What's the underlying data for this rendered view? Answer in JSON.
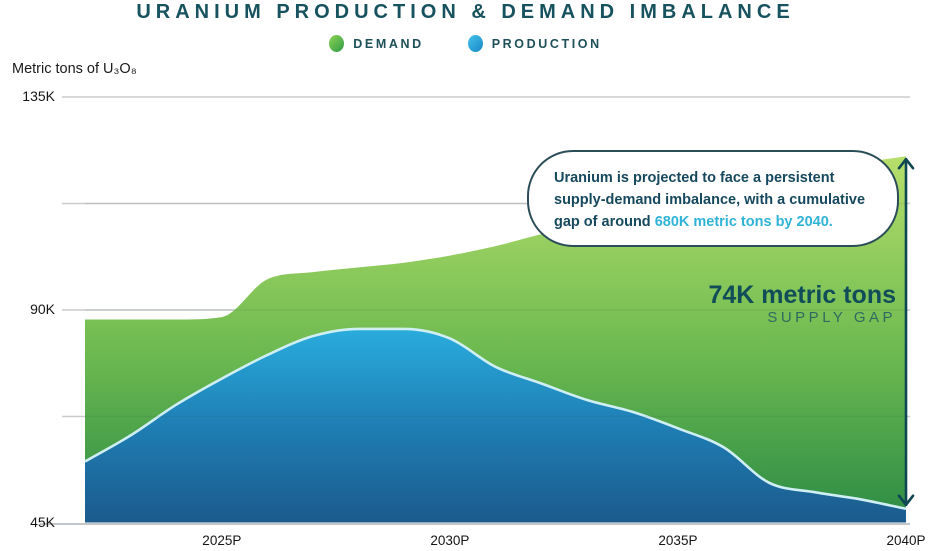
{
  "header": {
    "title": "URANIUM PRODUCTION & DEMAND IMBALANCE"
  },
  "legend": {
    "items": [
      {
        "label": "DEMAND",
        "dot_light": "#8ed455",
        "dot_dark": "#2f9a47"
      },
      {
        "label": "PRODUCTION",
        "dot_light": "#45c2ec",
        "dot_dark": "#1787c5"
      }
    ]
  },
  "axis": {
    "unit_label": "Metric tons of U₃O₈"
  },
  "callout": {
    "line1": "Uranium is projected to face a persistent",
    "line2": "supply-demand imbalance, with a cumulative",
    "line3_prefix": "gap of around ",
    "line3_highlight": "680K metric tons by 2040.",
    "highlight_color": "#2fb3d7"
  },
  "gap_label": {
    "value": "74K metric tons",
    "caption": "SUPPLY GAP"
  },
  "colors": {
    "title_teal": "#17525f",
    "bubble_border": "#2b4d58",
    "gridline": "#c9ccce",
    "baseline": "#c2c6c8",
    "arrow": "#0d4751",
    "production_edge": "#cfeff4"
  },
  "chart_data": {
    "type": "area",
    "title": "URANIUM PRODUCTION & DEMAND IMBALANCE",
    "ylabel": "Metric tons of U₃O₈",
    "units": "thousand metric tons (K)",
    "x_years": [
      2022,
      2023,
      2024,
      2025,
      2026,
      2027,
      2028,
      2029,
      2030,
      2031,
      2032,
      2033,
      2034,
      2035,
      2036,
      2037,
      2038,
      2039,
      2040
    ],
    "series": [
      {
        "name": "DEMAND",
        "values": [
          88,
          88,
          88,
          88.5,
          96.5,
          98,
          99,
          100,
          101.5,
          103.5,
          106,
          108,
          110.5,
          112.5,
          114.5,
          117,
          119,
          121,
          122.5
        ],
        "gradient": [
          "#b9e06c",
          "#6cb950",
          "#2b8b45"
        ]
      },
      {
        "name": "PRODUCTION",
        "values": [
          58,
          63.5,
          70,
          75.5,
          80.5,
          84.5,
          86,
          86,
          84,
          78,
          74.5,
          71,
          68.5,
          65,
          61,
          53.5,
          51.5,
          50,
          48
        ],
        "gradient": [
          "#2aaede",
          "#1f7fb5",
          "#1b5a8c"
        ],
        "edge_color": "#cfeff4"
      }
    ],
    "ylim": [
      45,
      135
    ],
    "xlim": [
      2022,
      2040
    ],
    "y_ticks": [
      {
        "value": 135,
        "label": "135K"
      },
      {
        "value": 90,
        "label": "90K"
      },
      {
        "value": 45,
        "label": "45K"
      }
    ],
    "y_gridlines": [
      135,
      112.5,
      90,
      67.5,
      45
    ],
    "x_ticks": [
      {
        "year": 2025,
        "label": "2025P"
      },
      {
        "year": 2030,
        "label": "2030P"
      },
      {
        "year": 2035,
        "label": "2035P"
      },
      {
        "year": 2040,
        "label": "2040P"
      }
    ],
    "grid": true,
    "legend_position": "top",
    "annotation": {
      "gap_year": 2040,
      "gap_value_k": 74
    }
  }
}
